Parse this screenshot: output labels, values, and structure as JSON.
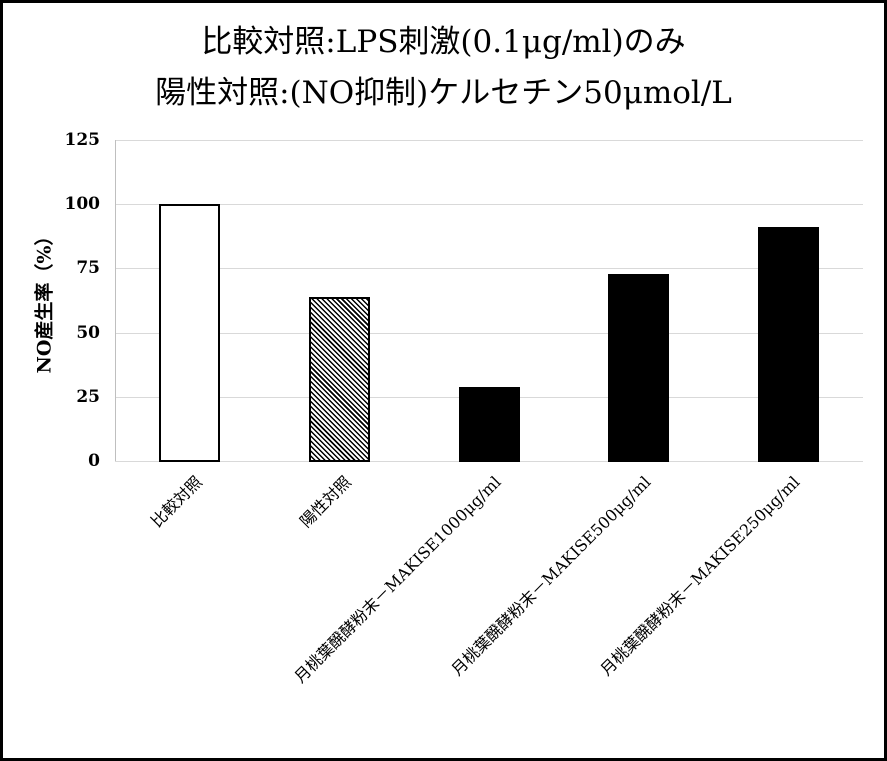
{
  "title": {
    "line1": "比較対照:LPS刺激(0.1μg/ml)のみ",
    "line2": "陽性対照:(NO抑制)ケルセチン50μmol/L"
  },
  "axes": {
    "ylabel": "NO産生率（%）",
    "yticks": [
      "0",
      "25",
      "50",
      "75",
      "100",
      "125"
    ]
  },
  "categories": [
    "比較対照",
    "陽性対照",
    "月桃葉醗酵粉末－MAKISE1000μg/ml",
    "月桃葉醗酵粉末－MAKISE500μg/ml",
    "月桃葉醗酵粉末－MAKISE250μg/ml"
  ],
  "colors": {
    "bar_solid": "#000000",
    "bar_outline_fill": "#ffffff",
    "gridline": "#d9d9d9"
  },
  "chart_data": {
    "type": "bar",
    "title": "比較対照:LPS刺激(0.1μg/ml)のみ / 陽性対照:(NO抑制)ケルセチン50μmol/L",
    "xlabel": "",
    "ylabel": "NO産生率（%）",
    "categories": [
      "比較対照",
      "陽性対照",
      "月桃葉醗酵粉末－MAKISE1000μg/ml",
      "月桃葉醗酵粉末－MAKISE500μg/ml",
      "月桃葉醗酵粉末－MAKISE250μg/ml"
    ],
    "values": [
      100,
      64,
      29,
      73,
      91
    ],
    "bar_styles": [
      "white-outline",
      "hatched",
      "solid-black",
      "solid-black",
      "solid-black"
    ],
    "ylim": [
      0,
      125
    ],
    "yticks": [
      0,
      25,
      50,
      75,
      100,
      125
    ],
    "grid": true,
    "legend": null
  }
}
